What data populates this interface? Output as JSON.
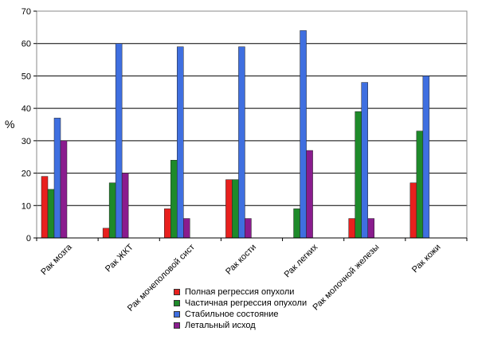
{
  "chart_data": {
    "type": "bar",
    "categories": [
      "Рак мозга",
      "Рак ЖКТ",
      "Рак мочеполовой сист",
      "Рак кости",
      "Рак легких",
      "Рак молочной железы",
      "Рак кожи"
    ],
    "series": [
      {
        "name": "Полная регрессия опухоли",
        "color": "#e8201e",
        "values": [
          19,
          3,
          9,
          18,
          0,
          6,
          17
        ]
      },
      {
        "name": "Частичная регрессия опухоли",
        "color": "#1e8a2a",
        "values": [
          15,
          17,
          24,
          18,
          9,
          39,
          33
        ]
      },
      {
        "name": "Стабильное состояние",
        "color": "#3f6fe0",
        "values": [
          37,
          60,
          59,
          59,
          64,
          48,
          50
        ]
      },
      {
        "name": "Летальный исход",
        "color": "#8a1c8e",
        "values": [
          30,
          20,
          6,
          6,
          27,
          6,
          0
        ]
      }
    ],
    "ylabel": "%",
    "ylim": [
      0,
      70
    ],
    "yticks": [
      0,
      10,
      20,
      30,
      40,
      50,
      60,
      70
    ],
    "grid": true,
    "legend": "bottom"
  }
}
